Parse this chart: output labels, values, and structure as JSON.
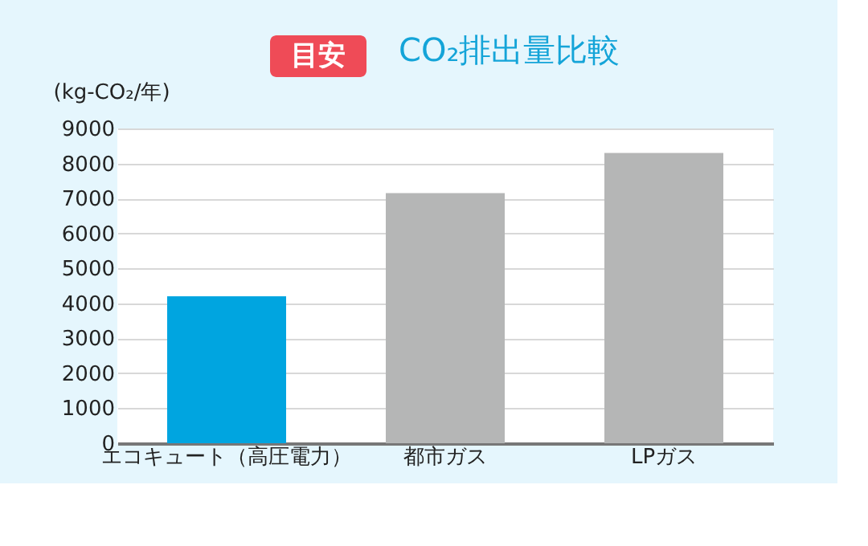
{
  "chart_data": {
    "type": "bar",
    "title": "CO₂排出量比較",
    "annotations": [
      "目安"
    ],
    "ylabel": "(kg-CO₂/年)",
    "categories": [
      "エコキュート（高圧電力）",
      "都市ガス",
      "LPガス"
    ],
    "values": [
      4200,
      7150,
      8300
    ],
    "colors": [
      "#00a5e0",
      "#b5b6b6",
      "#b5b6b6"
    ],
    "ylim": [
      0,
      9000
    ],
    "yticks": [
      0,
      1000,
      2000,
      3000,
      4000,
      5000,
      6000,
      7000,
      8000,
      9000
    ],
    "grid": "y"
  }
}
